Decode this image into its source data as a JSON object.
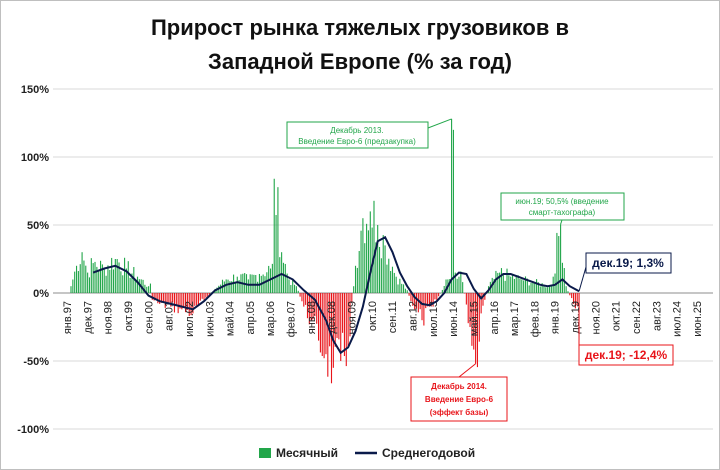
{
  "chart_data": {
    "type": "bar+line",
    "title_line1": "Прирост рынка тяжелых грузовиков в",
    "title_line2": "Западной Европе (% за год)",
    "y_ticks": [
      "150%",
      "100%",
      "50%",
      "0%",
      "-50%",
      "-100%"
    ],
    "y_tick_values": [
      150,
      100,
      50,
      0,
      -50,
      -100
    ],
    "ylim": [
      -100,
      150
    ],
    "x_ticks": [
      "янв.97",
      "дек.97",
      "ноя.98",
      "окт.99",
      "сен.00",
      "авг.01",
      "июл.02",
      "июн.03",
      "май.04",
      "апр.05",
      "мар.06",
      "фев.07",
      "янв.08",
      "дек.08",
      "ноя.09",
      "окт.10",
      "сен.11",
      "авг.12",
      "июл.13",
      "июн.14",
      "май.15",
      "апр.16",
      "мар.17",
      "фев.18",
      "янв.19",
      "дек.19",
      "ноя.20",
      "окт.21",
      "сен.22",
      "авг.23",
      "июл.24",
      "июн.25"
    ],
    "x_tick_months": [
      0,
      11,
      22,
      33,
      44,
      55,
      66,
      77,
      88,
      99,
      110,
      121,
      132,
      143,
      154,
      165,
      176,
      187,
      198,
      209,
      220,
      231,
      242,
      253,
      264,
      275,
      286,
      297,
      308,
      319,
      330,
      341
    ],
    "total_months": 350,
    "legend": [
      {
        "name": "Месячный",
        "color": "#22a64a"
      },
      {
        "name": "Среднегодовой",
        "color": "#0a1a4a"
      }
    ],
    "monthly_sample_points": [
      [
        0,
        5
      ],
      [
        3,
        20
      ],
      [
        6,
        30
      ],
      [
        9,
        15
      ],
      [
        12,
        22
      ],
      [
        18,
        18
      ],
      [
        24,
        25
      ],
      [
        30,
        18
      ],
      [
        36,
        12
      ],
      [
        42,
        5
      ],
      [
        44,
        -5
      ],
      [
        48,
        -8
      ],
      [
        54,
        -10
      ],
      [
        60,
        -12
      ],
      [
        66,
        -15
      ],
      [
        72,
        -5
      ],
      [
        78,
        3
      ],
      [
        84,
        10
      ],
      [
        90,
        12
      ],
      [
        96,
        10
      ],
      [
        102,
        14
      ],
      [
        108,
        18
      ],
      [
        110,
        84
      ],
      [
        114,
        30
      ],
      [
        118,
        10
      ],
      [
        122,
        5
      ],
      [
        126,
        -10
      ],
      [
        130,
        -20
      ],
      [
        134,
        -35
      ],
      [
        138,
        -45
      ],
      [
        142,
        -55
      ],
      [
        146,
        -50
      ],
      [
        150,
        -40
      ],
      [
        154,
        20
      ],
      [
        158,
        55
      ],
      [
        162,
        60
      ],
      [
        166,
        50
      ],
      [
        170,
        35
      ],
      [
        176,
        12
      ],
      [
        182,
        2
      ],
      [
        186,
        -12
      ],
      [
        190,
        -20
      ],
      [
        196,
        -10
      ],
      [
        200,
        0
      ],
      [
        204,
        10
      ],
      [
        206,
        128
      ],
      [
        208,
        15
      ],
      [
        210,
        12
      ],
      [
        212,
        8
      ],
      [
        216,
        -25
      ],
      [
        219,
        -52
      ],
      [
        222,
        -15
      ],
      [
        226,
        5
      ],
      [
        232,
        15
      ],
      [
        238,
        12
      ],
      [
        244,
        10
      ],
      [
        250,
        8
      ],
      [
        256,
        6
      ],
      [
        260,
        5
      ],
      [
        265,
        50.5
      ],
      [
        268,
        5
      ],
      [
        272,
        -8
      ],
      [
        275,
        -12.4
      ]
    ],
    "annual_average_points": [
      [
        12,
        15
      ],
      [
        18,
        18
      ],
      [
        24,
        20
      ],
      [
        30,
        16
      ],
      [
        36,
        8
      ],
      [
        42,
        -2
      ],
      [
        48,
        -6
      ],
      [
        54,
        -8
      ],
      [
        60,
        -10
      ],
      [
        66,
        -12
      ],
      [
        72,
        -6
      ],
      [
        78,
        2
      ],
      [
        84,
        6
      ],
      [
        90,
        8
      ],
      [
        96,
        6
      ],
      [
        102,
        6
      ],
      [
        108,
        10
      ],
      [
        114,
        14
      ],
      [
        120,
        10
      ],
      [
        126,
        2
      ],
      [
        132,
        -5
      ],
      [
        138,
        -20
      ],
      [
        142,
        -35
      ],
      [
        146,
        -44
      ],
      [
        150,
        -40
      ],
      [
        154,
        -28
      ],
      [
        158,
        -10
      ],
      [
        162,
        15
      ],
      [
        166,
        38
      ],
      [
        170,
        41
      ],
      [
        174,
        30
      ],
      [
        178,
        15
      ],
      [
        182,
        5
      ],
      [
        186,
        -3
      ],
      [
        190,
        -8
      ],
      [
        194,
        -9
      ],
      [
        198,
        -6
      ],
      [
        202,
        0
      ],
      [
        206,
        10
      ],
      [
        210,
        15
      ],
      [
        214,
        14
      ],
      [
        218,
        3
      ],
      [
        222,
        -4
      ],
      [
        226,
        2
      ],
      [
        230,
        10
      ],
      [
        234,
        14
      ],
      [
        238,
        14
      ],
      [
        242,
        12
      ],
      [
        246,
        10
      ],
      [
        250,
        8
      ],
      [
        254,
        6
      ],
      [
        258,
        5
      ],
      [
        262,
        6
      ],
      [
        266,
        10
      ],
      [
        270,
        5
      ],
      [
        275,
        1.3
      ]
    ],
    "annotations": {
      "dec13": {
        "month": 206,
        "value": 128,
        "line1": "Декабрь 2013.",
        "line2": "Введение Евро-6 (предзакупка)"
      },
      "dec14": {
        "month": 219,
        "value": -52,
        "line1": "Декабрь 2014.",
        "line2": "Введение Евро-6",
        "line3": "(эффект базы)"
      },
      "jun19": {
        "month": 265,
        "value": 50.5,
        "line1": "июн.19; 50,5% (введение",
        "line2": "смарт-тахографа)"
      },
      "dec19_avg": {
        "month": 275,
        "value": 1.3,
        "text": "дек.19; 1,3%"
      },
      "dec19_monthly": {
        "month": 275,
        "value": -12.4,
        "text": "дек.19; -12,4%"
      }
    }
  }
}
